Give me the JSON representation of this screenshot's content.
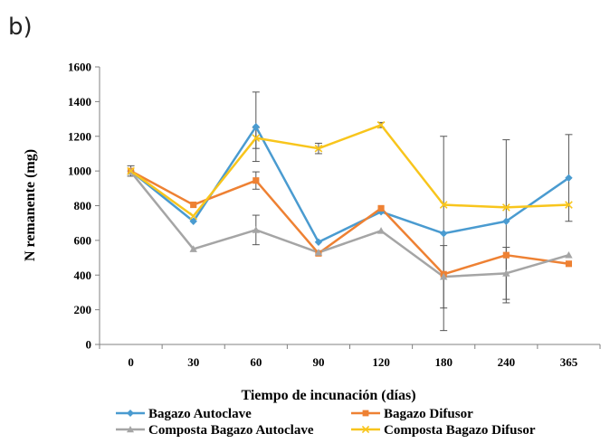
{
  "panel_label": "b)",
  "chart_data": {
    "type": "line",
    "title": "",
    "xlabel": "Tiempo de incunación (días)",
    "ylabel": "N remanente (mg)",
    "ylim": [
      0,
      1600
    ],
    "yticks": [
      0,
      200,
      400,
      600,
      800,
      1000,
      1200,
      1400,
      1600
    ],
    "categories": [
      "0",
      "30",
      "60",
      "90",
      "120",
      "180",
      "240",
      "365"
    ],
    "grid": false,
    "legend_position": "bottom",
    "series": [
      {
        "name": "Bagazo Autoclave",
        "color": "#4a9bd0",
        "marker": "diamond",
        "values": [
          1000,
          710,
          1255,
          590,
          765,
          640,
          710,
          960
        ],
        "errors": [
          30,
          0,
          200,
          0,
          0,
          560,
          470,
          250
        ]
      },
      {
        "name": "Bagazo Difusor",
        "color": "#ee8133",
        "marker": "square",
        "values": [
          1000,
          805,
          945,
          525,
          785,
          405,
          515,
          465
        ],
        "errors": [
          0,
          0,
          50,
          0,
          0,
          0,
          0,
          0
        ]
      },
      {
        "name": "Composta Bagazo Autoclave",
        "color": "#a5a5a5",
        "marker": "triangle",
        "values": [
          995,
          550,
          660,
          530,
          655,
          390,
          410,
          515
        ],
        "errors": [
          0,
          0,
          85,
          0,
          0,
          180,
          150,
          0
        ]
      },
      {
        "name": "Composta Bagazo Difusor",
        "color": "#f8c51c",
        "marker": "x",
        "values": [
          1000,
          740,
          1190,
          1130,
          1265,
          805,
          790,
          805
        ],
        "errors": [
          0,
          0,
          60,
          30,
          15,
          0,
          0,
          0
        ]
      }
    ]
  }
}
